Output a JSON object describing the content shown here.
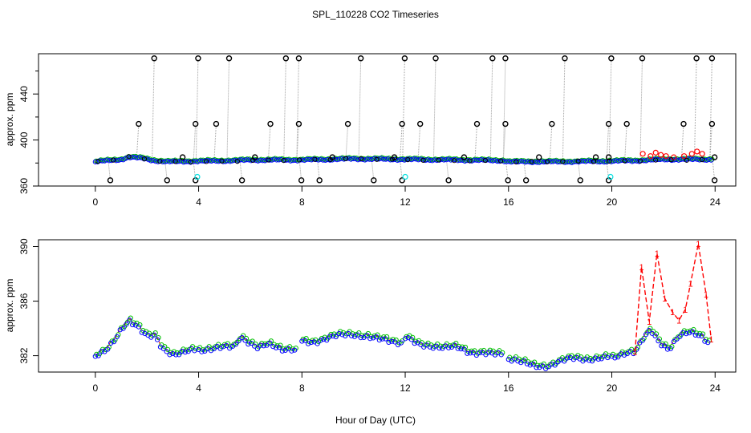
{
  "chart_data": {
    "title": "SPL_110228  CO2 Timeseries",
    "xlabel": "Hour of Day (UTC)",
    "colors": {
      "raw": "#000000",
      "s1": "#ff0000",
      "s2": "#00c000",
      "s3": "#0000ff",
      "cal": "#00e0e0",
      "spike_line": "#a0a0a0"
    },
    "panels": [
      {
        "type": "scatter",
        "ylabel": "approx. ppm",
        "xlim": [
          -2.2,
          24.8
        ],
        "ylim": [
          360,
          475
        ],
        "xticks": [
          "0",
          "4",
          "8",
          "12",
          "16",
          "20",
          "24"
        ],
        "yticks": [
          "360",
          "400",
          "440"
        ],
        "baseline": [
          [
            0,
            381
          ],
          [
            0.5,
            382
          ],
          [
            1.0,
            383
          ],
          [
            1.3,
            385
          ],
          [
            1.8,
            384
          ],
          [
            2.3,
            382
          ],
          [
            2.8,
            381
          ],
          [
            4,
            381.5
          ],
          [
            5.5,
            382
          ],
          [
            6,
            382.5
          ],
          [
            8,
            382.5
          ],
          [
            10,
            383.5
          ],
          [
            12,
            383
          ],
          [
            14,
            382.5
          ],
          [
            15.8,
            382
          ],
          [
            16,
            381
          ],
          [
            18,
            381
          ],
          [
            20,
            381.5
          ],
          [
            21,
            382
          ],
          [
            22,
            383
          ],
          [
            23.8,
            383
          ]
        ],
        "spikes_high": [
          2.2,
          3.9,
          5.1,
          7.3,
          7.8,
          10.2,
          11.9,
          13.1,
          15.3,
          15.8,
          18.1,
          19.9,
          21.1,
          23.2,
          23.8
        ],
        "spikes_mid": [
          1.6,
          3.8,
          4.6,
          6.7,
          7.8,
          9.7,
          11.8,
          12.5,
          14.7,
          15.8,
          17.6,
          19.8,
          20.5,
          22.7,
          23.8
        ],
        "spikes_low": [
          0.5,
          2.7,
          3.8,
          5.6,
          7.9,
          8.6,
          10.7,
          11.8,
          13.6,
          15.9,
          16.6,
          18.7,
          19.8,
          23.9
        ],
        "spikes_small": [
          3.3,
          6.1,
          9.1,
          11.5,
          14.2,
          17.1,
          19.3,
          19.8,
          23.9
        ],
        "cal_points": [
          [
            3.95,
            368
          ],
          [
            12.0,
            368
          ],
          [
            19.95,
            368
          ]
        ],
        "red_excursions": [
          [
            21.2,
            388
          ],
          [
            21.5,
            386
          ],
          [
            21.7,
            389
          ],
          [
            21.9,
            387
          ],
          [
            22.1,
            386
          ],
          [
            22.4,
            385
          ],
          [
            22.8,
            386
          ],
          [
            23.1,
            388
          ],
          [
            23.3,
            390
          ],
          [
            23.5,
            388
          ]
        ]
      },
      {
        "type": "line",
        "ylabel": "approx. ppm",
        "xlim": [
          -2.2,
          24.8
        ],
        "ylim": [
          380.8,
          390.5
        ],
        "xticks": [
          "0",
          "4",
          "8",
          "12",
          "16",
          "20",
          "24"
        ],
        "yticks": [
          "382",
          "386",
          "390"
        ],
        "ytick_values": [
          382,
          386,
          390
        ],
        "segments": [
          [
            [
              0,
              382
            ],
            [
              0.4,
              382.3
            ],
            [
              0.7,
              383
            ],
            [
              1.0,
              384
            ],
            [
              1.3,
              384.7
            ],
            [
              1.6,
              384.3
            ],
            [
              2.0,
              383.4
            ],
            [
              2.3,
              383.4
            ],
            [
              2.6,
              382.5
            ],
            [
              3.0,
              382.2
            ],
            [
              3.5,
              382.4
            ],
            [
              3.9,
              382.4
            ]
          ],
          [
            [
              4.0,
              382.5
            ],
            [
              4.5,
              382.5
            ],
            [
              5.0,
              382.6
            ],
            [
              5.4,
              382.7
            ],
            [
              5.6,
              383.5
            ],
            [
              6.0,
              383.0
            ],
            [
              6.3,
              382.6
            ],
            [
              6.7,
              382.8
            ],
            [
              7.2,
              382.5
            ],
            [
              7.6,
              382.6
            ],
            [
              7.8,
              382.5
            ]
          ],
          [
            [
              8.0,
              383.1
            ],
            [
              8.5,
              383.1
            ],
            [
              9.0,
              383.3
            ],
            [
              9.5,
              383.5
            ],
            [
              10.0,
              383.6
            ],
            [
              10.5,
              383.5
            ],
            [
              11.0,
              383.2
            ],
            [
              11.5,
              383.0
            ],
            [
              11.9,
              383.0
            ]
          ],
          [
            [
              12.0,
              383.3
            ],
            [
              12.5,
              382.9
            ],
            [
              13.0,
              382.8
            ],
            [
              13.5,
              382.6
            ],
            [
              14.0,
              382.6
            ],
            [
              14.5,
              382.3
            ],
            [
              15.0,
              382.3
            ],
            [
              15.5,
              382.1
            ],
            [
              15.8,
              382.0
            ]
          ],
          [
            [
              16.0,
              381.8
            ],
            [
              16.5,
              381.5
            ],
            [
              17.0,
              381.3
            ],
            [
              17.5,
              381.3
            ],
            [
              18.0,
              381.6
            ],
            [
              18.5,
              381.8
            ],
            [
              19.0,
              381.8
            ],
            [
              19.5,
              381.9
            ],
            [
              19.9,
              381.9
            ]
          ],
          [
            [
              20.0,
              382.0
            ],
            [
              20.5,
              382.2
            ],
            [
              20.9,
              382.2
            ],
            [
              21.2,
              383.2
            ],
            [
              21.5,
              384.0
            ],
            [
              21.8,
              383.2
            ],
            [
              22.2,
              382.5
            ],
            [
              22.6,
              383.4
            ],
            [
              23.0,
              383.7
            ],
            [
              23.4,
              383.6
            ],
            [
              23.8,
              383.0
            ]
          ]
        ],
        "red_curve": [
          [
            20.9,
            382.3
          ],
          [
            21.15,
            388.5
          ],
          [
            21.45,
            384.5
          ],
          [
            21.75,
            389.5
          ],
          [
            22.05,
            386.2
          ],
          [
            22.35,
            385.2
          ],
          [
            22.6,
            384.6
          ],
          [
            22.85,
            385.4
          ],
          [
            23.05,
            387.3
          ],
          [
            23.35,
            390.2
          ],
          [
            23.65,
            386.5
          ],
          [
            23.85,
            383.2
          ]
        ]
      }
    ]
  }
}
